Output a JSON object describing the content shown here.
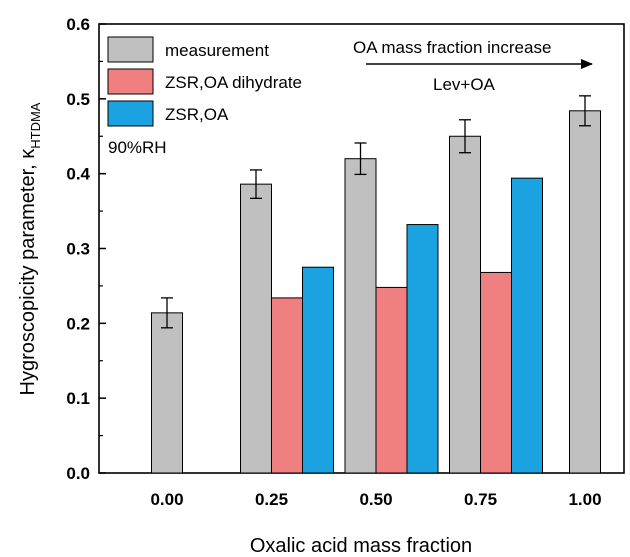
{
  "chart_data": {
    "type": "bar",
    "xlabel": "Oxalic acid mass fraction",
    "ylabel_main": "Hygroscopicity parameter, κ",
    "ylabel_sub": "HTDMA",
    "ylim": [
      0,
      0.6
    ],
    "yticks": [
      "0.0",
      "0.1",
      "0.2",
      "0.3",
      "0.4",
      "0.5",
      "0.6"
    ],
    "categories": [
      "0.00",
      "0.25",
      "0.50",
      "0.75",
      "1.00"
    ],
    "series": [
      {
        "name": "measurement",
        "color": "#c0c0c0",
        "values": [
          0.214,
          0.386,
          0.42,
          0.45,
          0.484
        ],
        "errors": [
          0.02,
          0.019,
          0.021,
          0.022,
          0.02
        ]
      },
      {
        "name": "ZSR,OA dihydrate",
        "color": "#f08080",
        "values": [
          null,
          0.234,
          0.248,
          0.268,
          null
        ]
      },
      {
        "name": "ZSR,OA",
        "color": "#1aa3e0",
        "values": [
          null,
          0.275,
          0.332,
          0.394,
          null
        ]
      }
    ],
    "legend_position": "top-left",
    "annotations": {
      "rh": "90%RH",
      "arrow_text": "OA mass fraction increase",
      "system": "Lev+OA"
    }
  }
}
